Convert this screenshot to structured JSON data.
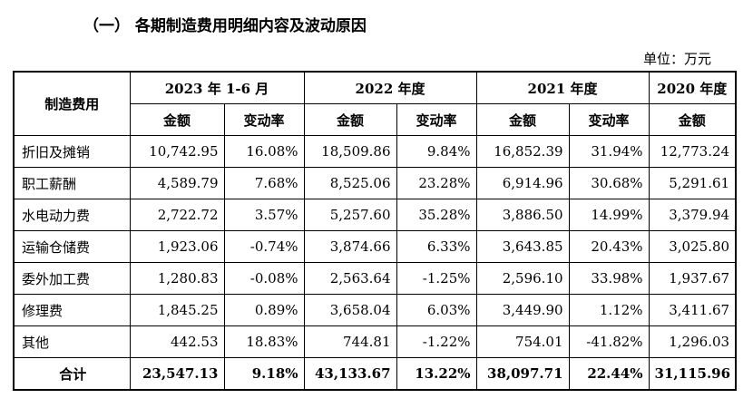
{
  "heading": "（一） 各期制造费用明细内容及波动原因",
  "unit": "单位：万元",
  "table": {
    "row_header": "制造费用",
    "periods": [
      "2023 年 1-6 月",
      "2022 年度",
      "2021 年度",
      "2020 年度"
    ],
    "sub_amount": "金额",
    "sub_change": "变动率",
    "rows": [
      {
        "name": "折旧及摊销",
        "v": [
          "10,742.95",
          "16.08%",
          "18,509.86",
          "9.84%",
          "16,852.39",
          "31.94%",
          "12,773.24"
        ]
      },
      {
        "name": "职工薪酬",
        "v": [
          "4,589.79",
          "7.68%",
          "8,525.06",
          "23.28%",
          "6,914.96",
          "30.68%",
          "5,291.61"
        ]
      },
      {
        "name": "水电动力费",
        "v": [
          "2,722.72",
          "3.57%",
          "5,257.60",
          "35.28%",
          "3,886.50",
          "14.99%",
          "3,379.94"
        ]
      },
      {
        "name": "运输仓储费",
        "v": [
          "1,923.06",
          "-0.74%",
          "3,874.66",
          "6.33%",
          "3,643.85",
          "20.43%",
          "3,025.80"
        ]
      },
      {
        "name": "委外加工费",
        "v": [
          "1,280.83",
          "-0.08%",
          "2,563.64",
          "-1.25%",
          "2,596.10",
          "33.98%",
          "1,937.67"
        ]
      },
      {
        "name": "修理费",
        "v": [
          "1,845.25",
          "0.89%",
          "3,658.04",
          "6.03%",
          "3,449.90",
          "1.12%",
          "3,411.67"
        ]
      },
      {
        "name": "其他",
        "v": [
          "442.53",
          "18.83%",
          "744.81",
          "-1.22%",
          "754.01",
          "-41.82%",
          "1,296.03"
        ]
      }
    ],
    "total": {
      "name": "合计",
      "v": [
        "23,547.13",
        "9.18%",
        "43,133.67",
        "13.22%",
        "38,097.71",
        "22.44%",
        "31,115.96"
      ]
    }
  }
}
